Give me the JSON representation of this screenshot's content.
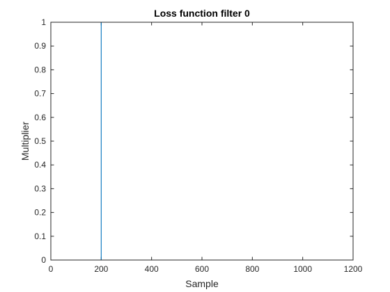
{
  "chart_data": {
    "type": "line",
    "title": "Loss function filter 0",
    "xlabel": "Sample",
    "ylabel": "Multiplier",
    "xlim": [
      0,
      1200
    ],
    "ylim": [
      0,
      1
    ],
    "x_ticks": [
      0,
      200,
      400,
      600,
      800,
      1000,
      1200
    ],
    "y_ticks": [
      0,
      0.1,
      0.2,
      0.3,
      0.4,
      0.5,
      0.6,
      0.7,
      0.8,
      0.9,
      1
    ],
    "x_tick_labels": [
      "0",
      "200",
      "400",
      "600",
      "800",
      "1000",
      "1200"
    ],
    "y_tick_labels": [
      "0",
      "0.1",
      "0.2",
      "0.3",
      "0.4",
      "0.5",
      "0.6",
      "0.7",
      "0.8",
      "0.9",
      "1"
    ],
    "grid": false,
    "series": [
      {
        "x": [
          1,
          200,
          200,
          1000
        ],
        "y": [
          0,
          0,
          1,
          1
        ],
        "color": "#0072BD"
      }
    ]
  }
}
